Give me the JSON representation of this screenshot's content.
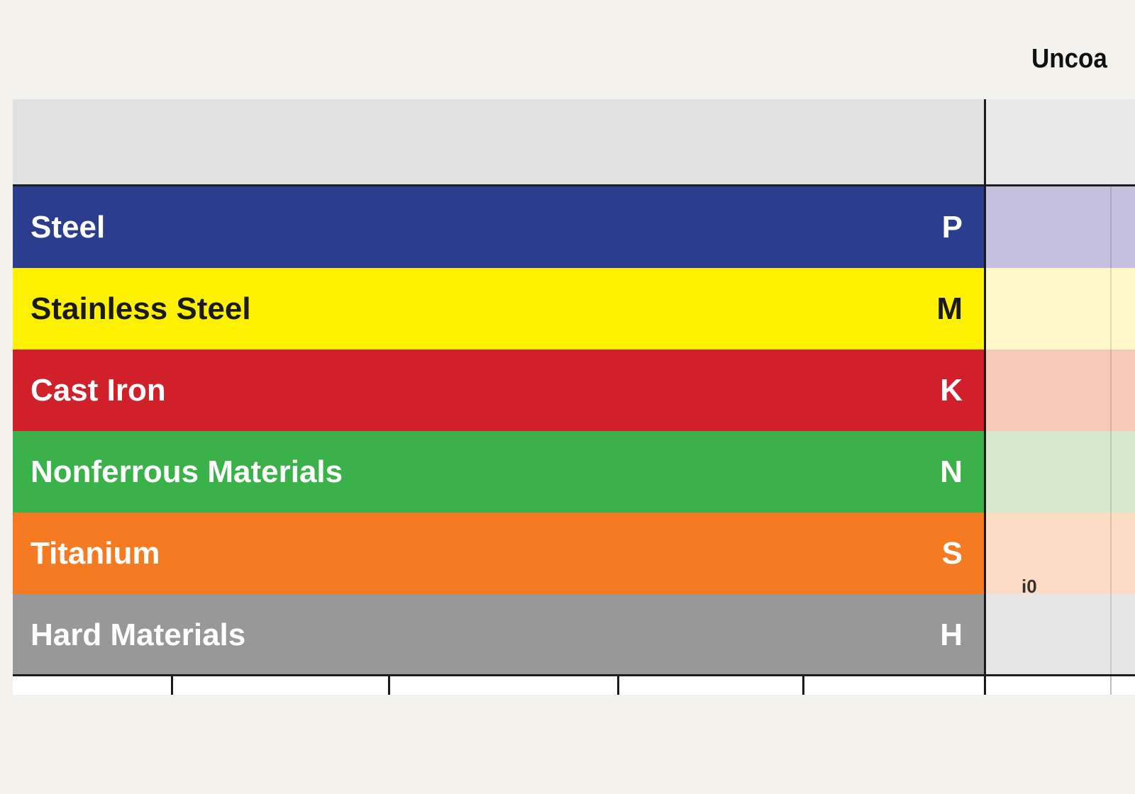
{
  "header": {
    "column_title": "Uncoa"
  },
  "materials": [
    {
      "name": "Steel",
      "code": "P",
      "color": "#2b3d8f",
      "text_color": "#ffffff",
      "tint": "#c4c0de"
    },
    {
      "name": "Stainless Steel",
      "code": "M",
      "color": "#fff200",
      "text_color": "#1a1a1a",
      "tint": "#fff9c9"
    },
    {
      "name": "Cast Iron",
      "code": "K",
      "color": "#d0202a",
      "text_color": "#ffffff",
      "tint": "#f6c9b9"
    },
    {
      "name": "Nonferrous Materials",
      "code": "N",
      "color": "#3bb14a",
      "text_color": "#ffffff",
      "tint": "#d6e9cc"
    },
    {
      "name": "Titanium",
      "code": "S",
      "color": "#f57a22",
      "text_color": "#ffffff",
      "tint": "#fcdcc4"
    },
    {
      "name": "Hard Materials",
      "code": "H",
      "color": "#989898",
      "text_color": "#ffffff",
      "tint": "#e6e6e6"
    }
  ],
  "footer": {
    "cut_text": "i0"
  }
}
